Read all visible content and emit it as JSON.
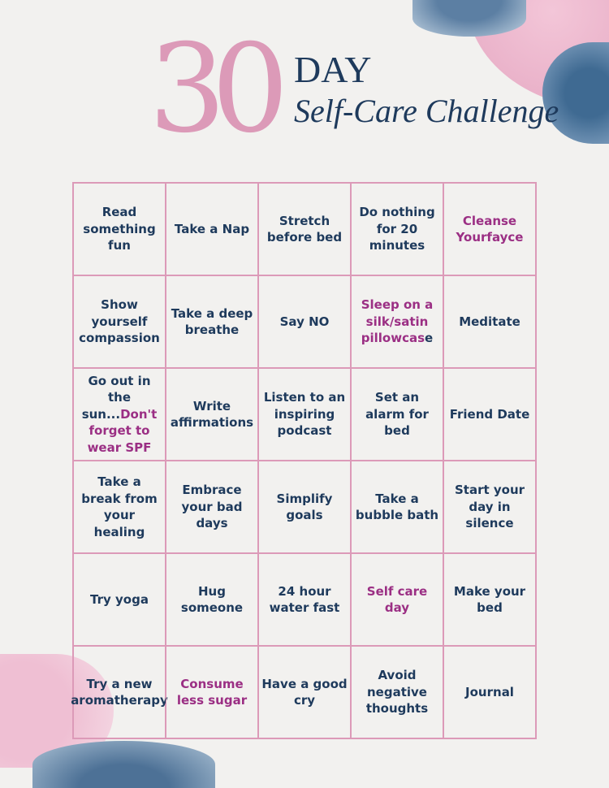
{
  "header": {
    "number": "30",
    "day": "DAY",
    "subtitle": "Self-Care Challenge"
  },
  "colors": {
    "border": "#dc9ab8",
    "text": "#1e3a5c",
    "accent": "#9b2f84",
    "number": "#dc9ab8"
  },
  "cells": [
    [
      {
        "t": "Read something fun"
      }
    ],
    [
      {
        "t": "Take a Nap"
      }
    ],
    [
      {
        "t": "Stretch before bed"
      }
    ],
    [
      {
        "t": "Do nothing for 20 minutes"
      }
    ],
    [
      {
        "t": "Cleanse Yourfayce",
        "pink": true
      }
    ],
    [
      {
        "t": "Show yourself compassion"
      }
    ],
    [
      {
        "t": "Take a deep breathe"
      }
    ],
    [
      {
        "t": "Say NO"
      }
    ],
    [
      {
        "t": "Sleep on a silk/satin pillowcas",
        "pink": true
      },
      {
        "t": "e"
      }
    ],
    [
      {
        "t": "Meditate"
      }
    ],
    [
      {
        "t": "Go out in the sun..."
      },
      {
        "t": "Don't forget to wear SPF",
        "pink": true
      }
    ],
    [
      {
        "t": "Write affirmations"
      }
    ],
    [
      {
        "t": "Listen to an inspiring podcast"
      }
    ],
    [
      {
        "t": "Set an alarm for bed"
      }
    ],
    [
      {
        "t": "Friend Date"
      }
    ],
    [
      {
        "t": "Take a break from your healing"
      }
    ],
    [
      {
        "t": "Embrace your bad days"
      }
    ],
    [
      {
        "t": "Simplify goals"
      }
    ],
    [
      {
        "t": "Take a bubble bath"
      }
    ],
    [
      {
        "t": "Start your day in silence"
      }
    ],
    [
      {
        "t": "Try yoga"
      }
    ],
    [
      {
        "t": "Hug someone"
      }
    ],
    [
      {
        "t": "24 hour water fast"
      }
    ],
    [
      {
        "t": "Self care day",
        "pink": true
      }
    ],
    [
      {
        "t": "Make your bed"
      }
    ],
    [
      {
        "t": "Try a new aromatherapy"
      }
    ],
    [
      {
        "t": "Consume less sugar",
        "pink": true
      }
    ],
    [
      {
        "t": "Have a good cry"
      }
    ],
    [
      {
        "t": "Avoid negative thoughts"
      }
    ],
    [
      {
        "t": "Journal"
      }
    ]
  ]
}
